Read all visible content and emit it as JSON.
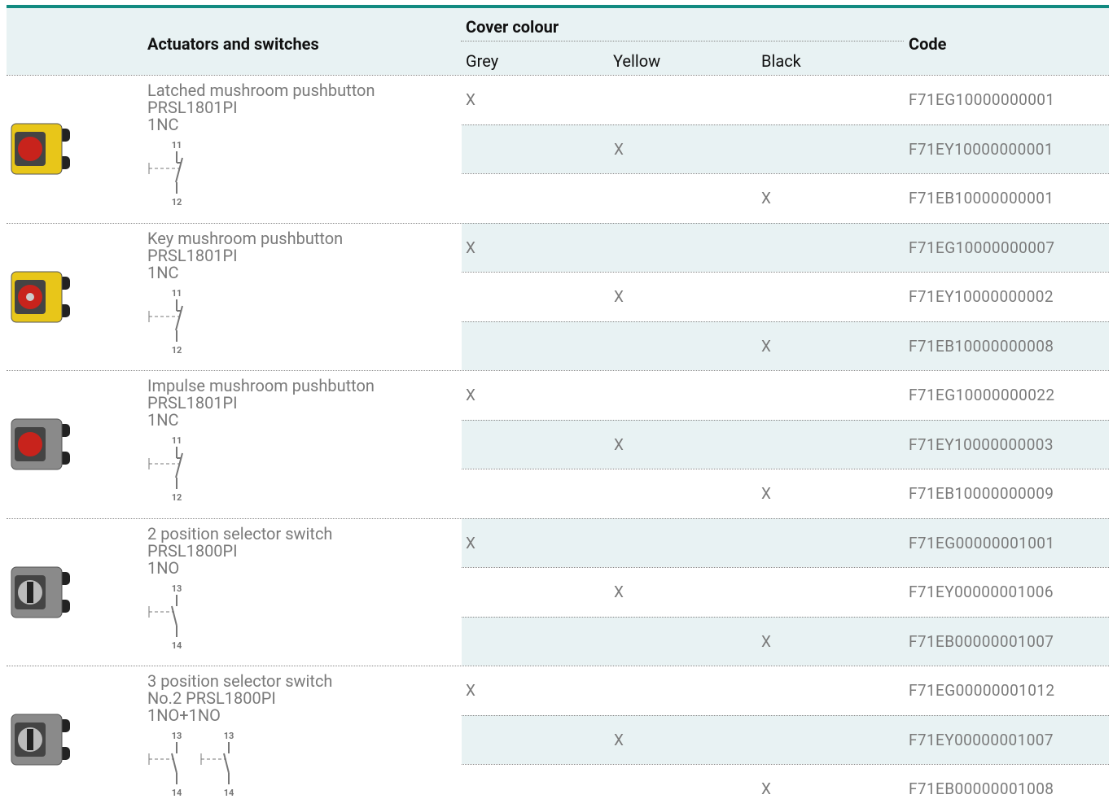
{
  "header": {
    "actuators": "Actuators and switches",
    "cover_colour": "Cover colour",
    "grey": "Grey",
    "yellow": "Yellow",
    "black": "Black",
    "code": "Code"
  },
  "products": [
    {
      "name": "Latched mushroom pushbutton",
      "model": "PRSL1801PI",
      "contacts": "1NC",
      "terminals": [
        "11",
        "12"
      ],
      "rows": [
        {
          "grey": "X",
          "code": "F71EG10000000001"
        },
        {
          "yellow": "X",
          "code": "F71EY10000000001"
        },
        {
          "black": "X",
          "code": "F71EB10000000001"
        }
      ]
    },
    {
      "name": "Key mushroom pushbutton",
      "model": "PRSL1801PI",
      "contacts": "1NC",
      "terminals": [
        "11",
        "12"
      ],
      "rows": [
        {
          "grey": "X",
          "code": "F71EG10000000007"
        },
        {
          "yellow": "X",
          "code": "F71EY10000000002"
        },
        {
          "black": "X",
          "code": "F71EB10000000008"
        }
      ]
    },
    {
      "name": "Impulse mushroom pushbutton",
      "model": "PRSL1801PI",
      "contacts": "1NC",
      "terminals": [
        "11",
        "12"
      ],
      "rows": [
        {
          "grey": "X",
          "code": "F71EG10000000022"
        },
        {
          "yellow": "X",
          "code": "F71EY10000000003"
        },
        {
          "black": "X",
          "code": "F71EB10000000009"
        }
      ]
    },
    {
      "name": "2 position selector switch",
      "model": "PRSL1800PI",
      "contacts": "1NO",
      "terminals": [
        "13",
        "14"
      ],
      "rows": [
        {
          "grey": "X",
          "code": "F71EG00000001001"
        },
        {
          "yellow": "X",
          "code": "F71EY00000001006"
        },
        {
          "black": "X",
          "code": "F71EB00000001007"
        }
      ]
    },
    {
      "name": "3 position selector switch",
      "model": "No.2 PRSL1800PI",
      "contacts": "1NO+1NO",
      "terminals": [
        "13",
        "14",
        "13",
        "14"
      ],
      "rows": [
        {
          "grey": "X",
          "code": "F71EG00000001012"
        },
        {
          "yellow": "X",
          "code": "F71EY00000001007"
        },
        {
          "black": "X",
          "code": "F71EB00000001008"
        }
      ]
    }
  ]
}
